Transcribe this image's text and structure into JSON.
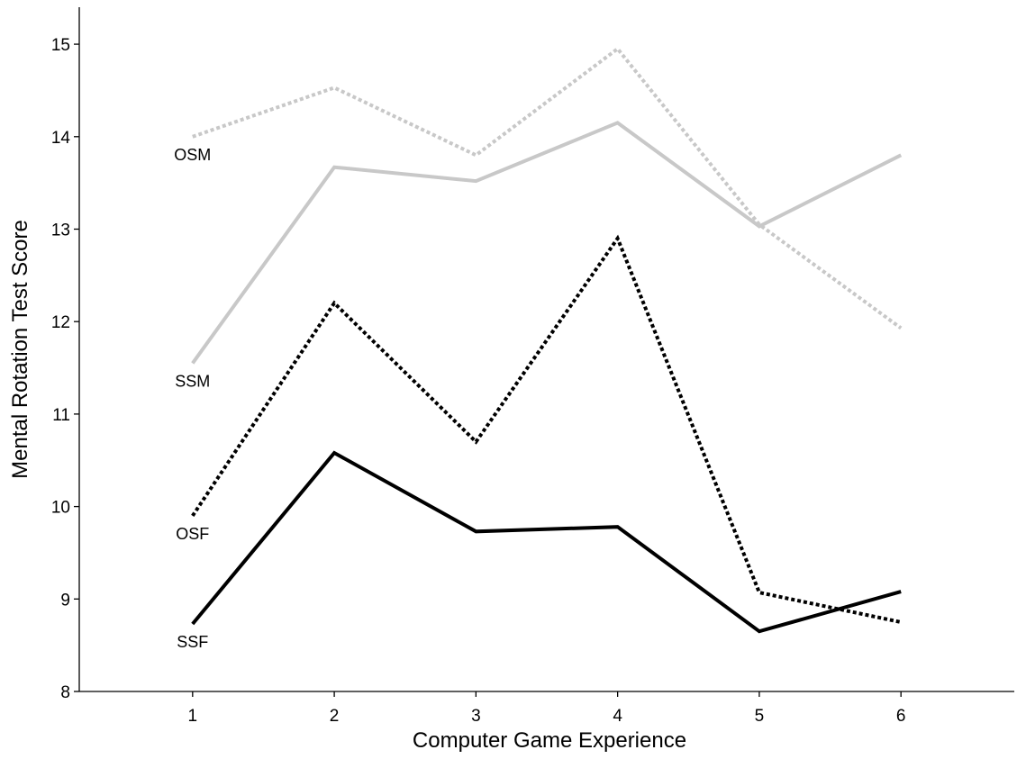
{
  "chart_data": {
    "type": "line",
    "xlabel": "Computer Game Experience",
    "ylabel": "Mental Rotation Test Score",
    "x": [
      1,
      2,
      3,
      4,
      5,
      6
    ],
    "xlim": [
      0.2,
      6.8
    ],
    "ylim": [
      8,
      15.4
    ],
    "yticks": [
      8,
      9,
      10,
      11,
      12,
      13,
      14,
      15
    ],
    "grid": false,
    "legend": "none",
    "series": [
      {
        "name": "OSM",
        "values": [
          14.0,
          14.53,
          13.8,
          14.95,
          13.05,
          11.93
        ],
        "color": "#c8c8c8",
        "style": "dotted"
      },
      {
        "name": "SSM",
        "values": [
          11.55,
          13.67,
          13.52,
          14.15,
          13.03,
          13.8
        ],
        "color": "#c8c8c8",
        "style": "solid"
      },
      {
        "name": "OSF",
        "values": [
          9.9,
          12.2,
          10.7,
          12.9,
          9.07,
          8.75
        ],
        "color": "#000000",
        "style": "dotted"
      },
      {
        "name": "SSF",
        "values": [
          8.73,
          10.58,
          9.73,
          9.78,
          8.65,
          9.08
        ],
        "color": "#000000",
        "style": "solid"
      }
    ]
  }
}
